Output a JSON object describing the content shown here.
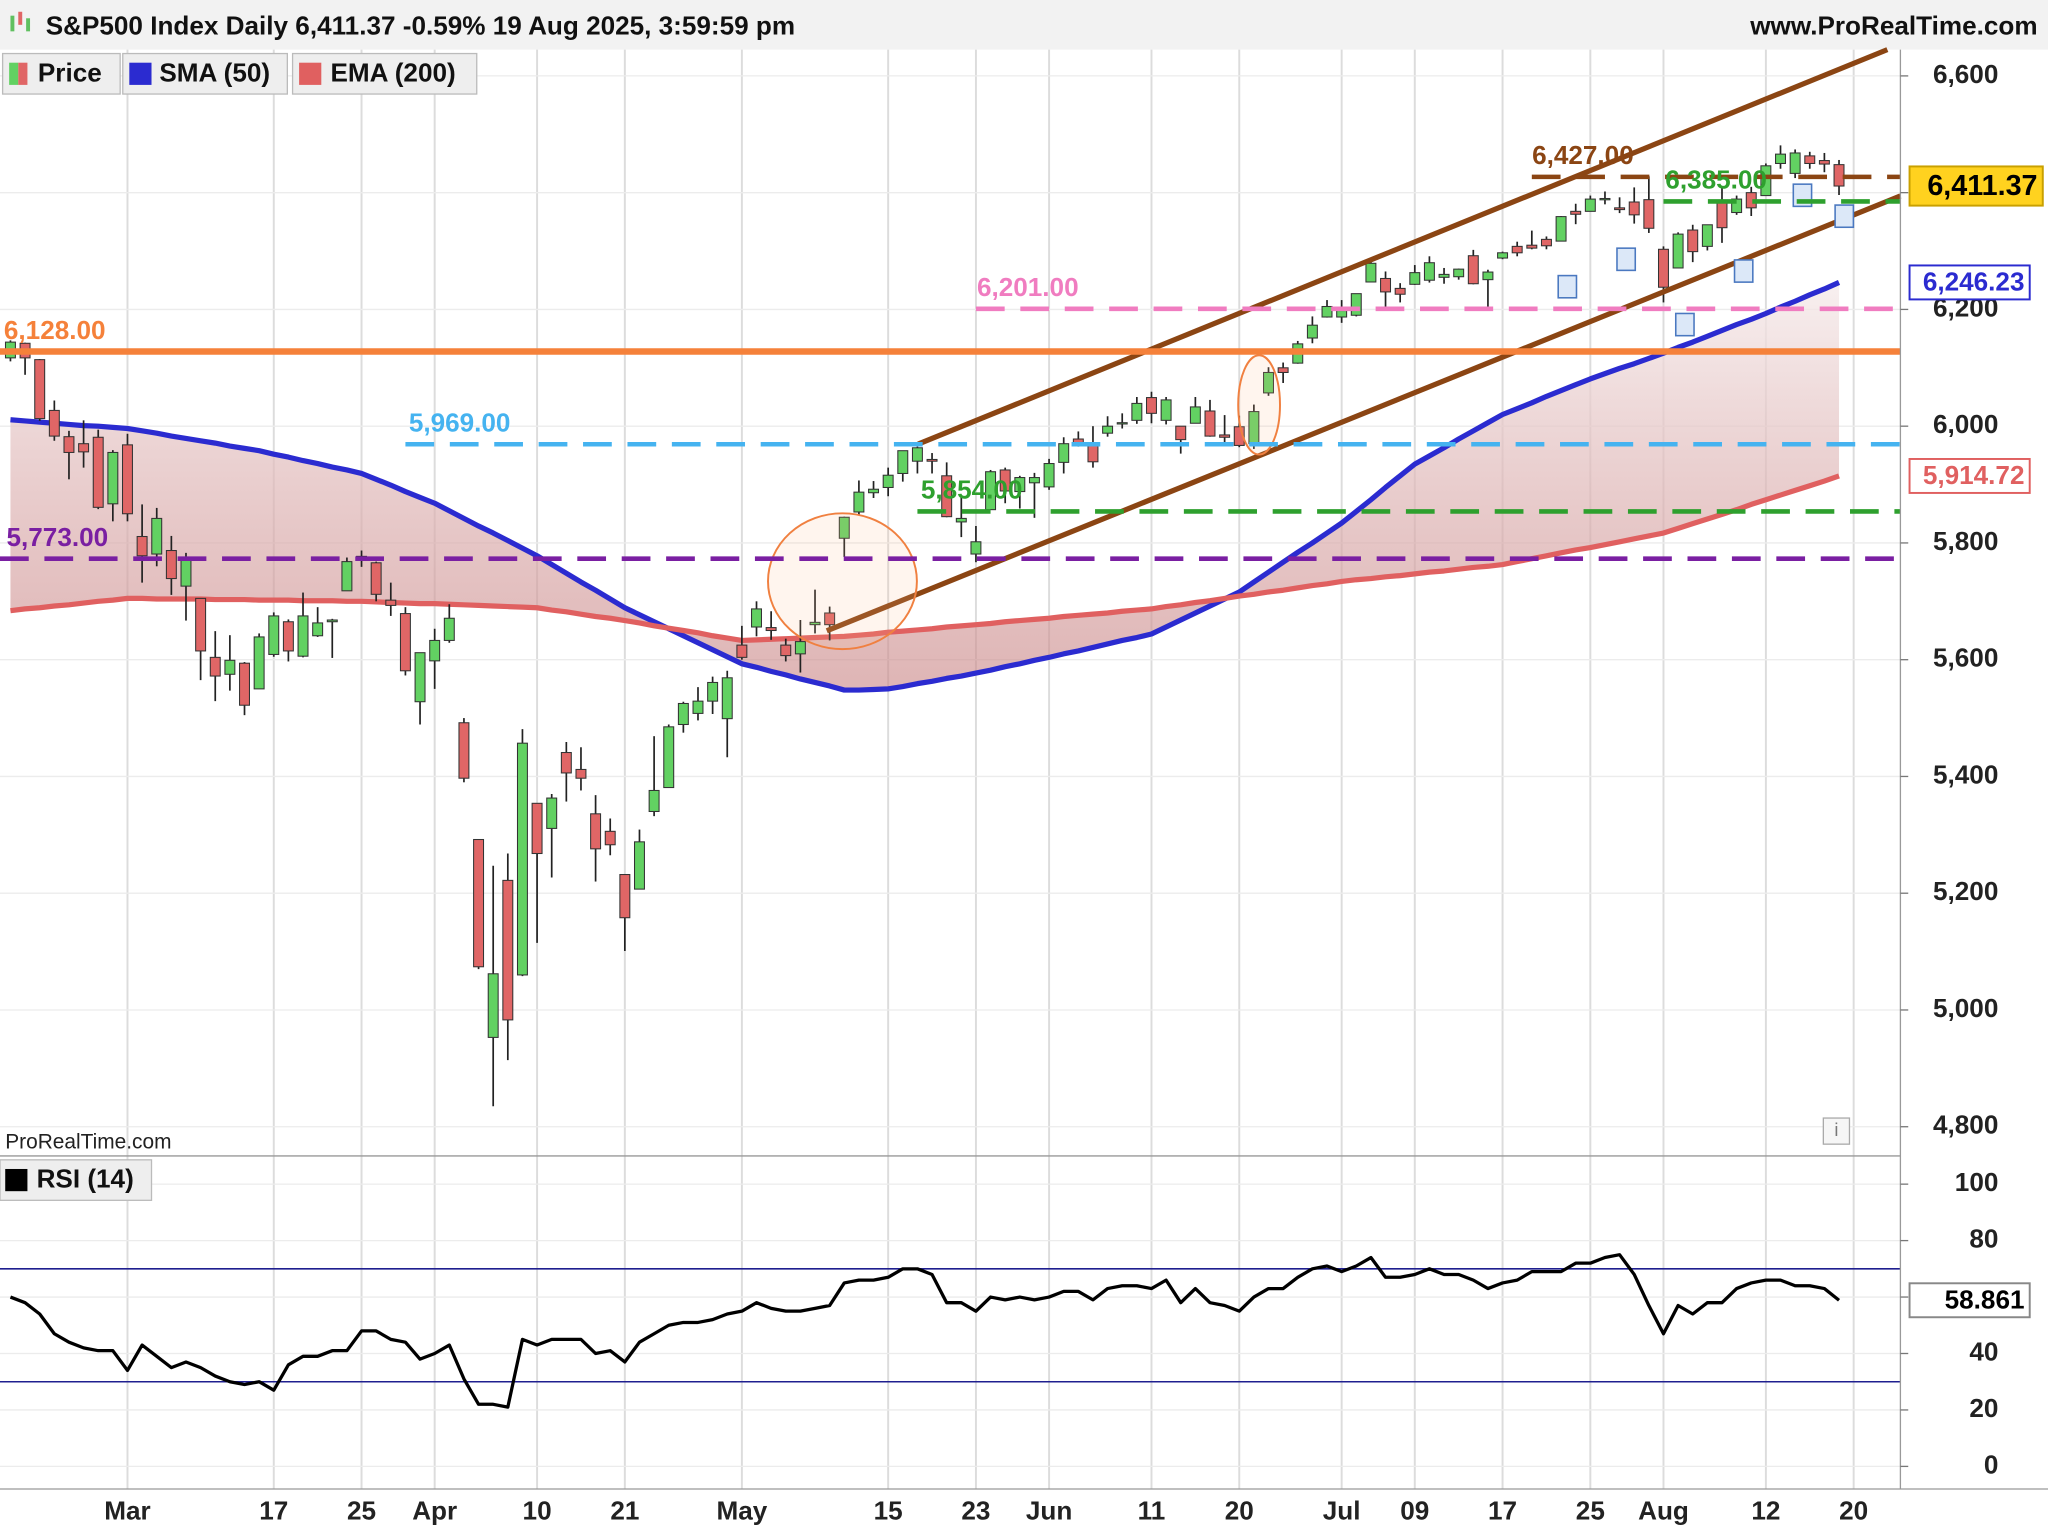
{
  "chart_data": [
    {
      "type": "candlestick",
      "title": "S&P500 Index Daily 6,411.37 -0.59% 19 Aug 2025, 3:59:59 pm",
      "source": "www.ProRealTime.com",
      "watermark": "ProRealTime.com",
      "name": "Price",
      "up_color": "#62d162",
      "down_color": "#e06666",
      "categories": [
        null,
        null,
        null,
        null,
        null,
        null,
        null,
        null,
        "Mar",
        null,
        null,
        null,
        null,
        null,
        null,
        null,
        null,
        null,
        "17",
        null,
        null,
        null,
        null,
        null,
        "25",
        null,
        null,
        null,
        null,
        "Apr",
        null,
        null,
        null,
        null,
        null,
        null,
        "10",
        null,
        null,
        null,
        null,
        null,
        "21",
        null,
        null,
        null,
        null,
        null,
        null,
        null,
        "May",
        null,
        null,
        null,
        null,
        null,
        null,
        null,
        null,
        null,
        "15",
        null,
        null,
        null,
        null,
        null,
        "23",
        null,
        null,
        null,
        null,
        "Jun",
        null,
        null,
        null,
        null,
        null,
        null,
        "11",
        null,
        null,
        null,
        null,
        null,
        "20",
        null,
        null,
        null,
        null,
        null,
        null,
        "Jul",
        null,
        null,
        null,
        null,
        "09",
        null,
        null,
        null,
        null,
        null,
        "17",
        null,
        null,
        null,
        null,
        null,
        "25",
        null,
        null,
        null,
        null,
        "Aug",
        null,
        null,
        null,
        null,
        null,
        null,
        "12",
        null,
        null,
        null,
        null,
        null,
        "20"
      ],
      "open": [
        6117,
        6142,
        6114,
        6027,
        5982,
        5970,
        5981,
        5867,
        5968,
        5811,
        5781,
        5787,
        5726,
        5705,
        5604,
        5575,
        5594,
        5550,
        5609,
        5665,
        5606,
        5641,
        5665,
        5718,
        5770,
        5766,
        5702,
        5679,
        5528,
        5598,
        5633,
        5492,
        5292,
        4953,
        5222,
        5060,
        5354,
        5311,
        5441,
        5412,
        5336,
        5306,
        5232,
        5207,
        5340,
        5381,
        5489,
        5508,
        5529,
        5499,
        5625,
        5656,
        5655,
        5625,
        5610,
        5660,
        5680,
        5808,
        5853,
        5886,
        5895,
        5919,
        5940,
        5943,
        5915,
        5836,
        5781,
        5857,
        5925,
        5888,
        5903,
        5896,
        5938,
        5978,
        5972,
        5988,
        6005,
        6010,
        6049,
        6010,
        6000,
        6005,
        6026,
        5985,
        5999,
        5970,
        6057,
        6100,
        6108,
        6151,
        6187,
        6187,
        6190,
        6247,
        6253,
        6236,
        6243,
        6250,
        6255,
        6256,
        6292,
        6251,
        6288,
        6308,
        6310,
        6320,
        6317,
        6368,
        6368,
        6389,
        6374,
        6384,
        6388,
        6303,
        6271,
        6336,
        6308,
        6383,
        6366,
        6400,
        6395,
        6450,
        6433,
        6463,
        6455,
        6448,
        null
      ],
      "high": [
        6147,
        6143,
        6115,
        6044,
        5992,
        6010,
        5994,
        5959,
        5987,
        5866,
        5860,
        5812,
        5783,
        5705,
        5649,
        5642,
        5596,
        5645,
        5681,
        5669,
        5715,
        5690,
        5670,
        5775,
        5787,
        5768,
        5732,
        5690,
        5612,
        5653,
        5695,
        5500,
        5292,
        5247,
        5268,
        5481,
        5354,
        5370,
        5459,
        5450,
        5368,
        5328,
        5232,
        5309,
        5469,
        5489,
        5528,
        5553,
        5571,
        5581,
        5658,
        5700,
        5683,
        5636,
        5668,
        5720,
        5691,
        5845,
        5907,
        5906,
        5929,
        5958,
        5965,
        5954,
        5938,
        5879,
        5829,
        5925,
        5929,
        5915,
        5920,
        5944,
        5981,
        5991,
        6000,
        6017,
        6022,
        6050,
        6059,
        6050,
        6000,
        6050,
        6045,
        6019,
        6018,
        6037,
        6101,
        6109,
        6146,
        6188,
        6216,
        6216,
        6227,
        6285,
        6265,
        6245,
        6276,
        6291,
        6271,
        6270,
        6302,
        6268,
        6299,
        6316,
        6335,
        6325,
        6360,
        6381,
        6395,
        6402,
        6392,
        6409,
        6428,
        6308,
        6332,
        6345,
        6345,
        6409,
        6395,
        6410,
        6450,
        6481,
        6474,
        6470,
        6468,
        6456,
        null
      ],
      "low": [
        6111,
        6088,
        6009,
        5975,
        5909,
        5929,
        5858,
        5837,
        5837,
        5732,
        5760,
        5711,
        5667,
        5565,
        5529,
        5547,
        5505,
        5550,
        5605,
        5597,
        5604,
        5639,
        5603,
        5718,
        5759,
        5700,
        5675,
        5573,
        5489,
        5550,
        5629,
        5390,
        5070,
        4835,
        4914,
        5058,
        5115,
        5227,
        5357,
        5376,
        5220,
        5265,
        5101,
        5207,
        5332,
        5381,
        5475,
        5496,
        5507,
        5433,
        5600,
        5640,
        5634,
        5597,
        5578,
        5645,
        5633,
        5776,
        5847,
        5877,
        5880,
        5905,
        5919,
        5919,
        5844,
        5810,
        5767,
        5857,
        5868,
        5859,
        5843,
        5891,
        5919,
        5965,
        5929,
        5982,
        5996,
        6004,
        6005,
        6003,
        5953,
        6005,
        5982,
        5971,
        5964,
        5961,
        6052,
        6074,
        6107,
        6142,
        6186,
        6177,
        6188,
        6247,
        6201,
        6212,
        6242,
        6246,
        6244,
        6251,
        6243,
        6201,
        6286,
        6291,
        6303,
        6303,
        6317,
        6346,
        6368,
        6380,
        6365,
        6347,
        6331,
        6212,
        6271,
        6281,
        6301,
        6314,
        6362,
        6360,
        6395,
        6441,
        6425,
        6441,
        6435,
        6396,
        null
      ],
      "close": [
        6144,
        6117,
        6013,
        5983,
        5955,
        5956,
        5861,
        5955,
        5850,
        5778,
        5842,
        5739,
        5770,
        5615,
        5572,
        5599,
        5522,
        5639,
        5675,
        5615,
        5675,
        5663,
        5668,
        5768,
        5777,
        5712,
        5693,
        5581,
        5612,
        5633,
        5671,
        5397,
        5074,
        5062,
        4983,
        5457,
        5268,
        5363,
        5406,
        5397,
        5276,
        5283,
        5158,
        5288,
        5376,
        5485,
        5525,
        5529,
        5561,
        5569,
        5604,
        5687,
        5650,
        5607,
        5631,
        5664,
        5660,
        5844,
        5887,
        5892,
        5916,
        5958,
        5963,
        5940,
        5845,
        5842,
        5802,
        5922,
        5889,
        5912,
        5912,
        5936,
        5970,
        5971,
        5939,
        6000,
        6006,
        6039,
        6022,
        6045,
        5977,
        6033,
        5983,
        5981,
        5967,
        6025,
        6092,
        6092,
        6141,
        6173,
        6205,
        6198,
        6227,
        6279,
        6230,
        6226,
        6263,
        6280,
        6260,
        6269,
        6244,
        6264,
        6297,
        6297,
        6305,
        6309,
        6359,
        6363,
        6389,
        6390,
        6371,
        6362,
        6339,
        6238,
        6329,
        6299,
        6345,
        6340,
        6389,
        6374,
        6446,
        6466,
        6468,
        6450,
        6449,
        6411.37,
        null
      ],
      "last_label": "6,411.37",
      "series": [
        {
          "name": "SMA (50)",
          "color": "#2b2bd0",
          "last_label": "6,246.23",
          "values": [
            6011,
            6009,
            6007,
            6005,
            6003,
            6001,
            6000,
            5998,
            5996,
            5992,
            5988,
            5983,
            5979,
            5975,
            5971,
            5966,
            5962,
            5958,
            5952,
            5947,
            5941,
            5936,
            5930,
            5925,
            5919,
            5909,
            5899,
            5888,
            5878,
            5868,
            5855,
            5842,
            5829,
            5817,
            5804,
            5791,
            5778,
            5763,
            5748,
            5733,
            5719,
            5704,
            5689,
            5677,
            5665,
            5653,
            5641,
            5629,
            5617,
            5605,
            5593,
            5587,
            5580,
            5574,
            5567,
            5561,
            5555,
            5548,
            5548,
            5549,
            5550,
            5554,
            5559,
            5563,
            5568,
            5572,
            5577,
            5582,
            5588,
            5593,
            5599,
            5604,
            5610,
            5615,
            5621,
            5627,
            5633,
            5638,
            5644,
            5656,
            5668,
            5680,
            5692,
            5704,
            5716,
            5733,
            5750,
            5767,
            5784,
            5800,
            5817,
            5834,
            5854,
            5874,
            5895,
            5915,
            5935,
            5949,
            5963,
            5978,
            5992,
            6006,
            6020,
            6030,
            6040,
            6051,
            6061,
            6071,
            6081,
            6090,
            6099,
            6107,
            6116,
            6125,
            6135,
            6144,
            6154,
            6164,
            6174,
            6183,
            6193,
            6204,
            6214,
            6225,
            6235,
            6246.23,
            null
          ]
        },
        {
          "name": "EMA (200)",
          "color": "#e06060",
          "last_label": "5,914.72",
          "values": [
            5684,
            5687,
            5689,
            5692,
            5694,
            5697,
            5700,
            5702,
            5705,
            5705,
            5704,
            5704,
            5704,
            5704,
            5703,
            5703,
            5703,
            5702,
            5702,
            5702,
            5701,
            5701,
            5701,
            5700,
            5700,
            5699,
            5698,
            5697,
            5696,
            5696,
            5695,
            5694,
            5693,
            5692,
            5691,
            5690,
            5689,
            5685,
            5682,
            5678,
            5674,
            5671,
            5667,
            5663,
            5658,
            5654,
            5650,
            5646,
            5641,
            5637,
            5633,
            5634,
            5635,
            5636,
            5637,
            5638,
            5639,
            5640,
            5642,
            5644,
            5647,
            5649,
            5651,
            5653,
            5656,
            5658,
            5660,
            5662,
            5665,
            5667,
            5669,
            5671,
            5674,
            5676,
            5678,
            5680,
            5683,
            5685,
            5687,
            5691,
            5694,
            5698,
            5701,
            5705,
            5709,
            5712,
            5716,
            5719,
            5723,
            5727,
            5730,
            5734,
            5737,
            5739,
            5742,
            5744,
            5747,
            5750,
            5752,
            5755,
            5758,
            5760,
            5763,
            5768,
            5773,
            5778,
            5783,
            5788,
            5792,
            5797,
            5802,
            5807,
            5812,
            5817,
            5825,
            5833,
            5841,
            5849,
            5857,
            5866,
            5874,
            5882,
            5890,
            5898,
            5906,
            5914.72,
            null
          ]
        }
      ],
      "levels": [
        {
          "value": 6128,
          "label": "6,128.00",
          "color": "#f5813a",
          "style": "solid"
        },
        {
          "value": 6201,
          "label": "6,201.00",
          "color": "#f07cc0",
          "style": "dashed"
        },
        {
          "value": 5969,
          "label": "5,969.00",
          "color": "#45b3f0",
          "style": "dashed"
        },
        {
          "value": 5773,
          "label": "5,773.00",
          "color": "#7a1fa2",
          "style": "dashed"
        },
        {
          "value": 5854,
          "label": "5,854.00",
          "color": "#2ea02e",
          "style": "dashed"
        },
        {
          "value": 6427,
          "label": "6,427.00",
          "color": "#8b4513",
          "style": "dashed"
        },
        {
          "value": 6385,
          "label": "6,385.00",
          "color": "#2ea02e",
          "style": "dashed"
        }
      ],
      "ylim": [
        4750,
        6645
      ],
      "yticks": [
        {
          "value": 4800,
          "label": "4,800"
        },
        {
          "value": 5000,
          "label": "5,000"
        },
        {
          "value": 5200,
          "label": "5,200"
        },
        {
          "value": 5400,
          "label": "5,400"
        },
        {
          "value": 5600,
          "label": "5,600"
        },
        {
          "value": 5800,
          "label": "5,800"
        },
        {
          "value": 6000,
          "label": "6,000"
        },
        {
          "value": 6200,
          "label": "6,200"
        },
        {
          "value": 6400,
          "label": "6,400"
        },
        {
          "value": 6600,
          "label": "6,600"
        }
      ]
    },
    {
      "type": "line",
      "series": [
        {
          "name": "RSI (14)",
          "color": "#000000",
          "last_label": "58.861",
          "values": [
            60,
            58,
            54,
            47,
            44,
            42,
            41,
            41,
            34,
            43,
            39,
            35,
            37,
            35,
            32,
            30,
            29,
            30,
            27,
            36,
            39,
            39,
            41,
            41,
            48,
            48,
            45,
            44,
            38,
            40,
            43,
            31,
            22,
            22,
            21,
            45,
            43,
            45,
            45,
            45,
            40,
            41,
            37,
            44,
            47,
            50,
            51,
            51,
            52,
            54,
            55,
            58,
            56,
            55,
            55,
            56,
            57,
            65,
            66,
            66,
            67,
            70,
            70,
            68,
            58,
            58,
            55,
            60,
            59,
            60,
            59,
            60,
            62,
            62,
            59,
            63,
            64,
            64,
            63,
            66,
            58,
            63,
            58,
            57,
            55,
            60,
            63,
            63,
            67,
            70,
            71,
            69,
            71,
            74,
            67,
            67,
            68,
            70,
            68,
            68,
            66,
            63,
            65,
            66,
            69,
            69,
            69,
            72,
            72,
            74,
            75,
            68,
            57,
            47,
            57,
            54,
            58,
            58,
            63,
            65,
            66,
            66,
            64,
            64,
            63,
            58.861,
            null
          ]
        }
      ],
      "levels": [
        30,
        70
      ],
      "level_color": "#1f1f8f",
      "ylim": [
        -8,
        110
      ],
      "yticks": [
        0,
        20,
        40,
        60,
        80,
        100
      ]
    }
  ]
}
